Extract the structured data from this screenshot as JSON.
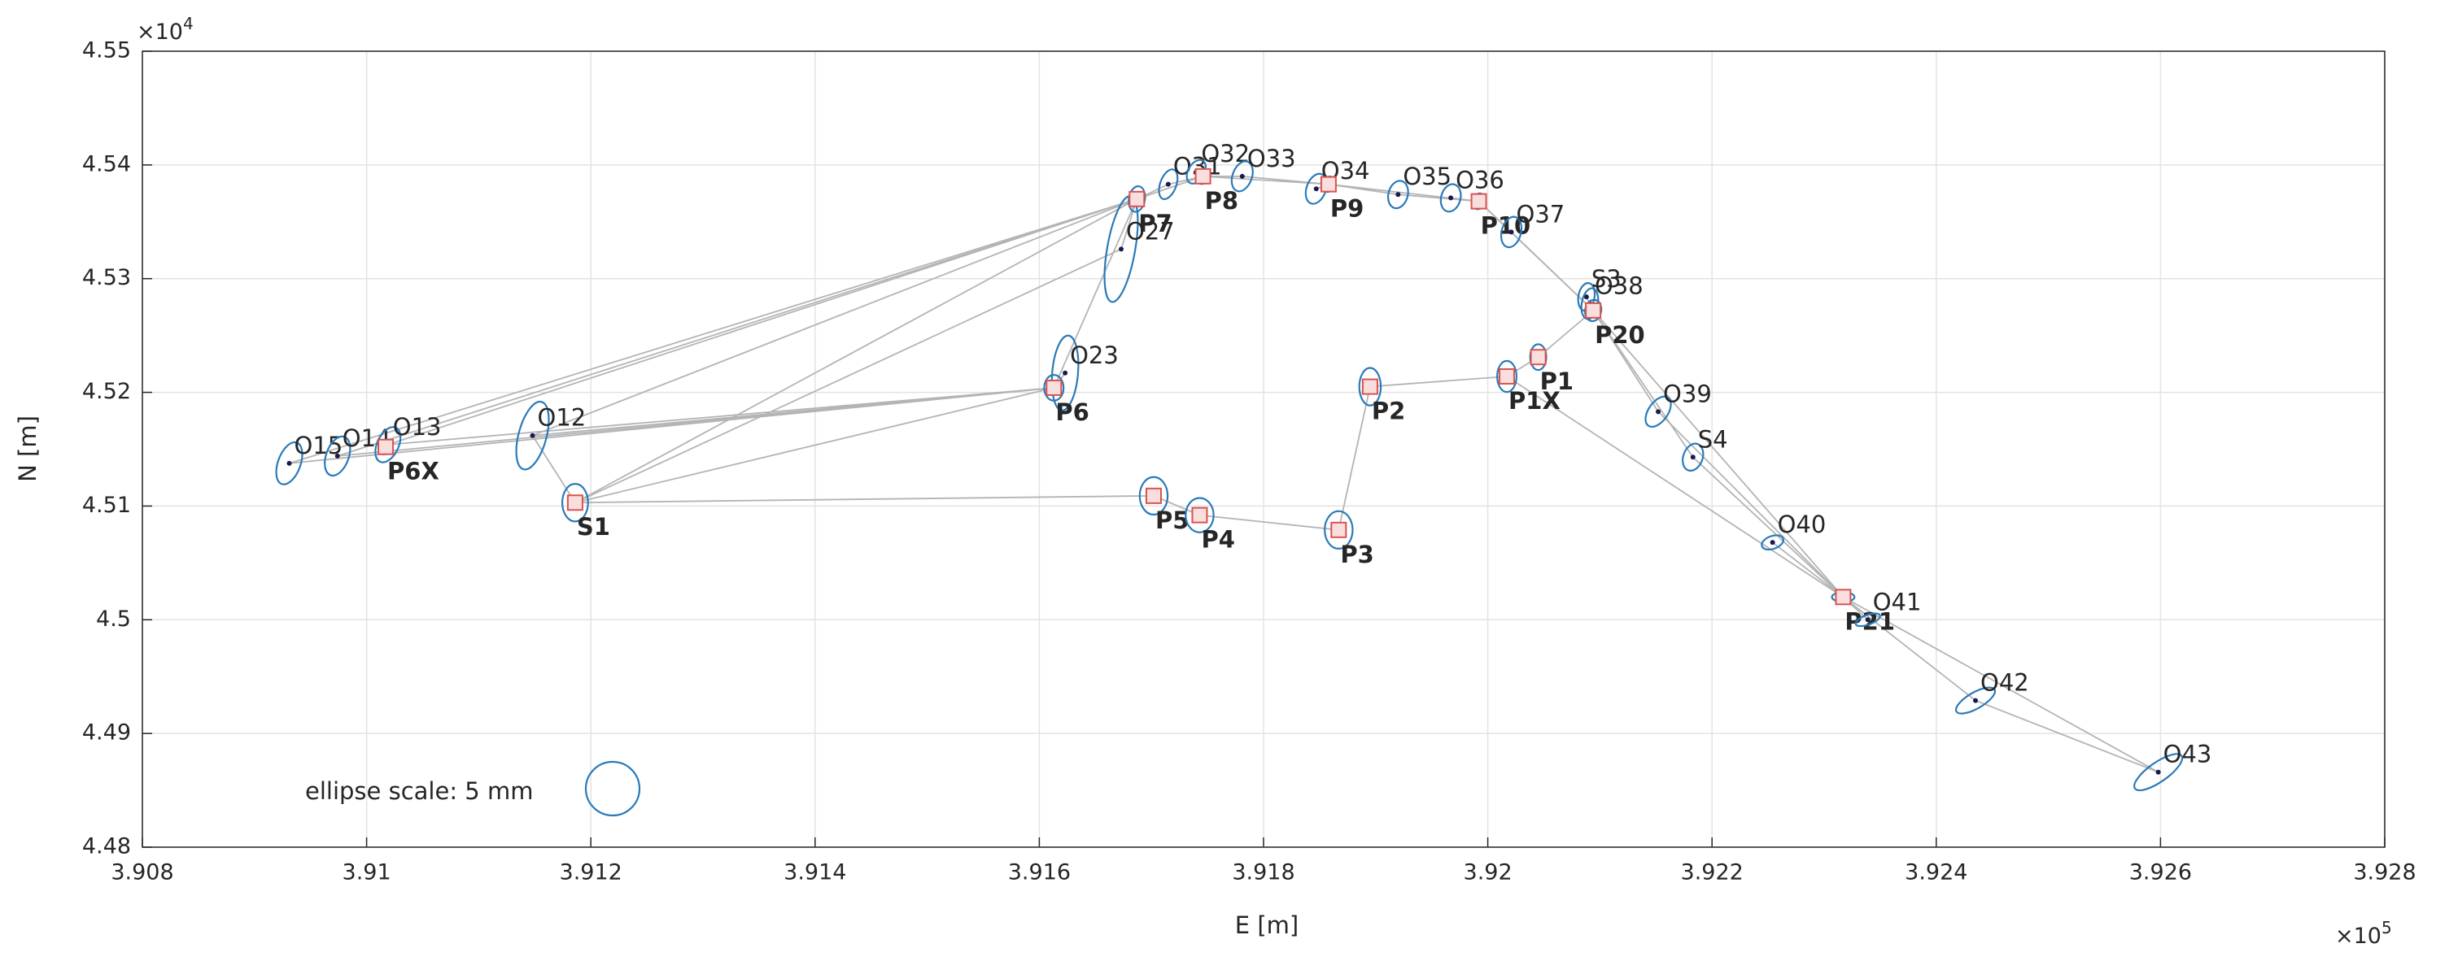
{
  "chart_data": {
    "type": "network",
    "x_label": "E [m]",
    "y_label": "N [m]",
    "x_multiplier": {
      "base": "×10",
      "exponent": "5"
    },
    "y_multiplier": {
      "base": "×10",
      "exponent": "4"
    },
    "xlim": [
      3.908,
      3.928
    ],
    "ylim": [
      4.48,
      4.55
    ],
    "xticks": [
      3.908,
      3.91,
      3.912,
      3.914,
      3.916,
      3.918,
      3.92,
      3.922,
      3.924,
      3.926,
      3.928
    ],
    "yticks": [
      4.48,
      4.49,
      4.5,
      4.51,
      4.52,
      4.53,
      4.54,
      4.55
    ],
    "grid": true,
    "ellipse_scale": {
      "label": "ellipse scale: 5 mm",
      "radius_mm": 5
    },
    "point_colors": {
      "dot": "#1a1a4e",
      "square": "#d9534f",
      "ellipse": "#2a7ab8",
      "line": "#b4b4b4"
    },
    "points": [
      {
        "label": "O15",
        "x": 3.90931,
        "y": 4.51376,
        "marker": "dot",
        "ellipse": [
          4.1,
          2.1,
          70
        ]
      },
      {
        "label": "O14",
        "x": 3.90974,
        "y": 4.5144,
        "marker": "dot",
        "ellipse": [
          3.8,
          2.1,
          70
        ]
      },
      {
        "label": "O13",
        "x": 3.91019,
        "y": 4.5154,
        "marker": "dot",
        "ellipse": [
          3.5,
          2.0,
          65
        ]
      },
      {
        "label": "P6X",
        "x": 3.91017,
        "y": 4.5152,
        "marker": "square",
        "ellipse": [
          1.5,
          1.0,
          60
        ]
      },
      {
        "label": "O12",
        "x": 3.91148,
        "y": 4.5162,
        "marker": "dot",
        "ellipse": [
          6.5,
          2.6,
          75
        ]
      },
      {
        "label": "S1",
        "x": 3.91186,
        "y": 4.5103,
        "marker": "square",
        "ellipse": [
          3.5,
          2.4,
          90
        ]
      },
      {
        "label": "O23",
        "x": 3.91623,
        "y": 4.5217,
        "marker": "dot",
        "ellipse": [
          7.0,
          2.4,
          85
        ]
      },
      {
        "label": "P6",
        "x": 3.91613,
        "y": 4.5204,
        "marker": "square",
        "ellipse": [
          2.4,
          1.8,
          90
        ]
      },
      {
        "label": "P5",
        "x": 3.91702,
        "y": 4.5109,
        "marker": "square",
        "ellipse": [
          3.5,
          2.6,
          90
        ]
      },
      {
        "label": "P4",
        "x": 3.91743,
        "y": 4.5092,
        "marker": "square",
        "ellipse": [
          3.2,
          2.6,
          90
        ]
      },
      {
        "label": "P3",
        "x": 3.91867,
        "y": 4.5079,
        "marker": "square",
        "ellipse": [
          3.5,
          2.6,
          90
        ]
      },
      {
        "label": "P2",
        "x": 3.91895,
        "y": 4.5205,
        "marker": "square",
        "ellipse": [
          3.5,
          2.0,
          90
        ]
      },
      {
        "label": "P1X",
        "x": 3.92017,
        "y": 4.5214,
        "marker": "square",
        "ellipse": [
          2.9,
          1.8,
          90
        ]
      },
      {
        "label": "P1",
        "x": 3.92045,
        "y": 4.5231,
        "marker": "square",
        "ellipse": [
          2.4,
          1.5,
          90
        ]
      },
      {
        "label": "O27",
        "x": 3.91673,
        "y": 4.5326,
        "marker": "dot",
        "ellipse": [
          10,
          2.6,
          80
        ]
      },
      {
        "label": "P7",
        "x": 3.91687,
        "y": 4.537,
        "marker": "square",
        "ellipse": [
          2.4,
          1.5,
          80
        ]
      },
      {
        "label": "O31",
        "x": 3.91715,
        "y": 4.5383,
        "marker": "dot",
        "ellipse": [
          2.9,
          1.5,
          70
        ]
      },
      {
        "label": "O32",
        "x": 3.9174,
        "y": 4.5394,
        "marker": "dot",
        "ellipse": [
          2.4,
          1.5,
          60
        ]
      },
      {
        "label": "P8",
        "x": 3.91746,
        "y": 4.539,
        "marker": "square",
        "ellipse": [
          1.5,
          1.2,
          60
        ]
      },
      {
        "label": "O33",
        "x": 3.91781,
        "y": 4.539,
        "marker": "dot",
        "ellipse": [
          2.9,
          1.8,
          70
        ]
      },
      {
        "label": "O34",
        "x": 3.91847,
        "y": 4.5379,
        "marker": "dot",
        "ellipse": [
          2.9,
          1.8,
          70
        ]
      },
      {
        "label": "P9",
        "x": 3.91858,
        "y": 4.5383,
        "marker": "square",
        "ellipse": [
          1.5,
          1.2,
          60
        ]
      },
      {
        "label": "O35",
        "x": 3.9192,
        "y": 4.5374,
        "marker": "dot",
        "ellipse": [
          2.6,
          1.8,
          75
        ]
      },
      {
        "label": "O36",
        "x": 3.91967,
        "y": 4.5371,
        "marker": "dot",
        "ellipse": [
          2.6,
          1.8,
          75
        ]
      },
      {
        "label": "P10",
        "x": 3.91992,
        "y": 4.5368,
        "marker": "square",
        "ellipse": [
          1.5,
          1.2,
          70
        ]
      },
      {
        "label": "O37",
        "x": 3.92021,
        "y": 4.5341,
        "marker": "dot",
        "ellipse": [
          2.9,
          1.8,
          75
        ]
      },
      {
        "label": "S3",
        "x": 3.92088,
        "y": 4.5284,
        "marker": "dot",
        "ellipse": [
          2.6,
          1.5,
          80
        ]
      },
      {
        "label": "O38",
        "x": 3.92091,
        "y": 4.5278,
        "marker": "dot",
        "ellipse": [
          2.9,
          1.5,
          80
        ]
      },
      {
        "label": "P20",
        "x": 3.92094,
        "y": 4.5272,
        "marker": "square",
        "ellipse": [
          2.0,
          1.5,
          80
        ]
      },
      {
        "label": "O39",
        "x": 3.92152,
        "y": 4.5183,
        "marker": "dot",
        "ellipse": [
          3.2,
          1.8,
          55
        ]
      },
      {
        "label": "S4",
        "x": 3.92183,
        "y": 4.5143,
        "marker": "dot",
        "ellipse": [
          2.6,
          1.8,
          70
        ]
      },
      {
        "label": "O40",
        "x": 3.92254,
        "y": 4.5068,
        "marker": "dot",
        "ellipse": [
          2.1,
          1.2,
          20
        ]
      },
      {
        "label": "P21",
        "x": 3.92317,
        "y": 4.502,
        "marker": "square",
        "ellipse": [
          2.1,
          0.9,
          0
        ]
      },
      {
        "label": "O41",
        "x": 3.92339,
        "y": 4.5,
        "marker": "dot",
        "ellipse": [
          2.4,
          0.9,
          20
        ]
      },
      {
        "label": "O42",
        "x": 3.92435,
        "y": 4.4929,
        "marker": "dot",
        "ellipse": [
          4.1,
          1.5,
          30
        ]
      },
      {
        "label": "O43",
        "x": 3.92598,
        "y": 4.4866,
        "marker": "dot",
        "ellipse": [
          5.3,
          1.8,
          35
        ]
      }
    ],
    "observations": [
      [
        "S1",
        "P5"
      ],
      [
        "P5",
        "P4"
      ],
      [
        "P4",
        "P3"
      ],
      [
        "P3",
        "P2"
      ],
      [
        "P2",
        "P1X"
      ],
      [
        "P1X",
        "P1"
      ],
      [
        "P1",
        "P20"
      ],
      [
        "P1X",
        "P21"
      ],
      [
        "S1",
        "P6"
      ],
      [
        "S1",
        "O12"
      ],
      [
        "S1",
        "P7"
      ],
      [
        "S1",
        "O27"
      ],
      [
        "P6",
        "O23"
      ],
      [
        "P6",
        "O12"
      ],
      [
        "P6",
        "O13"
      ],
      [
        "P6",
        "O14"
      ],
      [
        "P6",
        "O15"
      ],
      [
        "P6",
        "P7"
      ],
      [
        "P7",
        "O12"
      ],
      [
        "P7",
        "O13"
      ],
      [
        "P7",
        "O14"
      ],
      [
        "P7",
        "O15"
      ],
      [
        "P7",
        "O27"
      ],
      [
        "P7",
        "O31"
      ],
      [
        "P7",
        "P8"
      ],
      [
        "P8",
        "O31"
      ],
      [
        "P8",
        "O32"
      ],
      [
        "P8",
        "O33"
      ],
      [
        "P8",
        "P9"
      ],
      [
        "P9",
        "O33"
      ],
      [
        "P9",
        "O34"
      ],
      [
        "P9",
        "O35"
      ],
      [
        "P9",
        "P10"
      ],
      [
        "P10",
        "O35"
      ],
      [
        "P10",
        "O36"
      ],
      [
        "P10",
        "O37"
      ],
      [
        "P10",
        "P20"
      ],
      [
        "P20",
        "O37"
      ],
      [
        "P20",
        "S3"
      ],
      [
        "P20",
        "O38"
      ],
      [
        "P20",
        "O39"
      ],
      [
        "P20",
        "S4"
      ],
      [
        "P20",
        "P21"
      ],
      [
        "P21",
        "O39"
      ],
      [
        "P21",
        "S4"
      ],
      [
        "P21",
        "O40"
      ],
      [
        "P21",
        "O41"
      ],
      [
        "P21",
        "O42"
      ],
      [
        "P21",
        "O43"
      ],
      [
        "O42",
        "O43"
      ]
    ]
  }
}
